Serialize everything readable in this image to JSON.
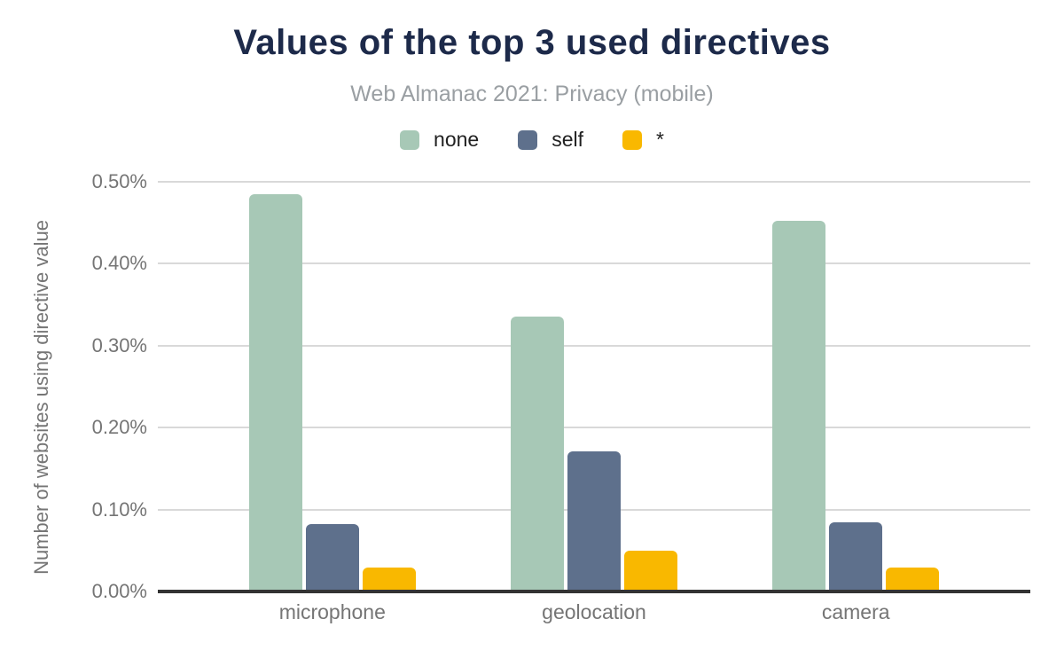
{
  "chart_data": {
    "type": "bar",
    "title": "Values of the top 3 used directives",
    "subtitle": "Web Almanac 2021: Privacy (mobile)",
    "categories": [
      "microphone",
      "geolocation",
      "camera"
    ],
    "series": [
      {
        "name": "none",
        "color": "#a7c8b6",
        "values": [
          0.485,
          0.335,
          0.452
        ]
      },
      {
        "name": "self",
        "color": "#5e708c",
        "values": [
          0.082,
          0.171,
          0.084
        ]
      },
      {
        "name": "*",
        "color": "#f9b800",
        "values": [
          0.029,
          0.05,
          0.029
        ]
      }
    ],
    "xlabel": "",
    "ylabel": "Number of websites using directive value",
    "ylim": [
      0,
      0.5
    ],
    "yticks": [
      "0.00%",
      "0.10%",
      "0.20%",
      "0.30%",
      "0.40%",
      "0.50%"
    ],
    "ytick_values": [
      0,
      0.1,
      0.2,
      0.3,
      0.4,
      0.5
    ],
    "grid": "horizontal",
    "legend_position": "top",
    "group_center_percents": [
      20,
      50,
      80
    ]
  },
  "colors": {
    "title": "#1d2a4a",
    "subtitle": "#9a9fa3",
    "axis_text": "#757575",
    "gridline": "#d9d9d9",
    "baseline": "#333333",
    "legend_text": "#212121",
    "background": "#ffffff"
  }
}
